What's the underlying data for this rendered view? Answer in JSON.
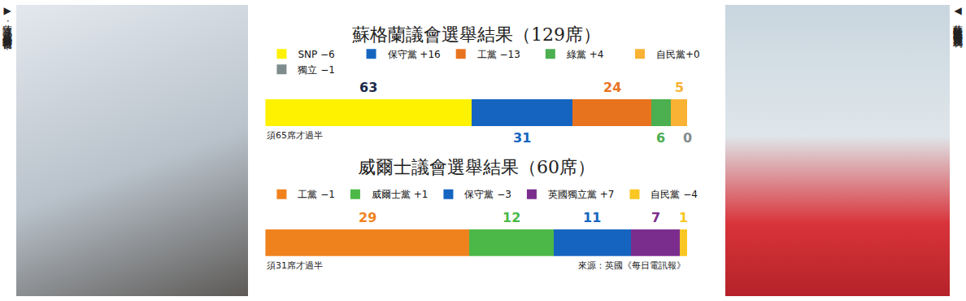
{
  "chart_data": [
    {
      "type": "bar",
      "title": "蘇格蘭議會選舉結果（129席）",
      "orientation": "horizontal",
      "stacked": true,
      "data_labels": true,
      "tick_labels": false,
      "legend": "top",
      "xlim": [
        0,
        129
      ],
      "categories": [
        null
      ],
      "series": [
        {
          "name": "SNP −6",
          "color": "#fff200",
          "values": [
            63
          ]
        },
        {
          "name": "保守黨 +16",
          "color": "#1565c0",
          "values": [
            31
          ]
        },
        {
          "name": "工黨 −13",
          "color": "#e8731f",
          "values": [
            24
          ]
        },
        {
          "name": "綠黨 +4",
          "color": "#4caf50",
          "values": [
            6
          ]
        },
        {
          "name": "自民黨+0",
          "color": "#f9b233",
          "values": [
            5
          ]
        },
        {
          "name": "獨立 −1",
          "color": "#7f8c8d",
          "values": [
            0
          ]
        }
      ],
      "annotations": [
        "須65席才過半"
      ]
    },
    {
      "type": "bar",
      "title": "威爾士議會選舉結果（60席）",
      "orientation": "horizontal",
      "stacked": true,
      "data_labels": true,
      "tick_labels": false,
      "legend": "top",
      "xlim": [
        0,
        60
      ],
      "categories": [
        null
      ],
      "series": [
        {
          "name": "工黨 −1",
          "color": "#f0821e",
          "values": [
            29
          ]
        },
        {
          "name": "威爾士黨 +1",
          "color": "#4cb848",
          "values": [
            12
          ]
        },
        {
          "name": "保守黨 −3",
          "color": "#1565c0",
          "values": [
            11
          ]
        },
        {
          "name": "英國獨立黨 +7",
          "color": "#7b2d8e",
          "values": [
            7
          ]
        },
        {
          "name": "自民黨 −4",
          "color": "#f9c623",
          "values": [
            1
          ]
        }
      ],
      "annotations": [
        "須31席才過半",
        "來源：英國《每日電訊報》"
      ]
    }
  ],
  "photos": [
    {
      "caption": "▶薩迪克·汗成為首位穆斯林倫敦市長",
      "credit": "美聯社"
    },
    {
      "caption": "◀蘇格蘭民族黨黨魁斯特金六日慶祝勝利",
      "credit": "美聯社"
    }
  ]
}
